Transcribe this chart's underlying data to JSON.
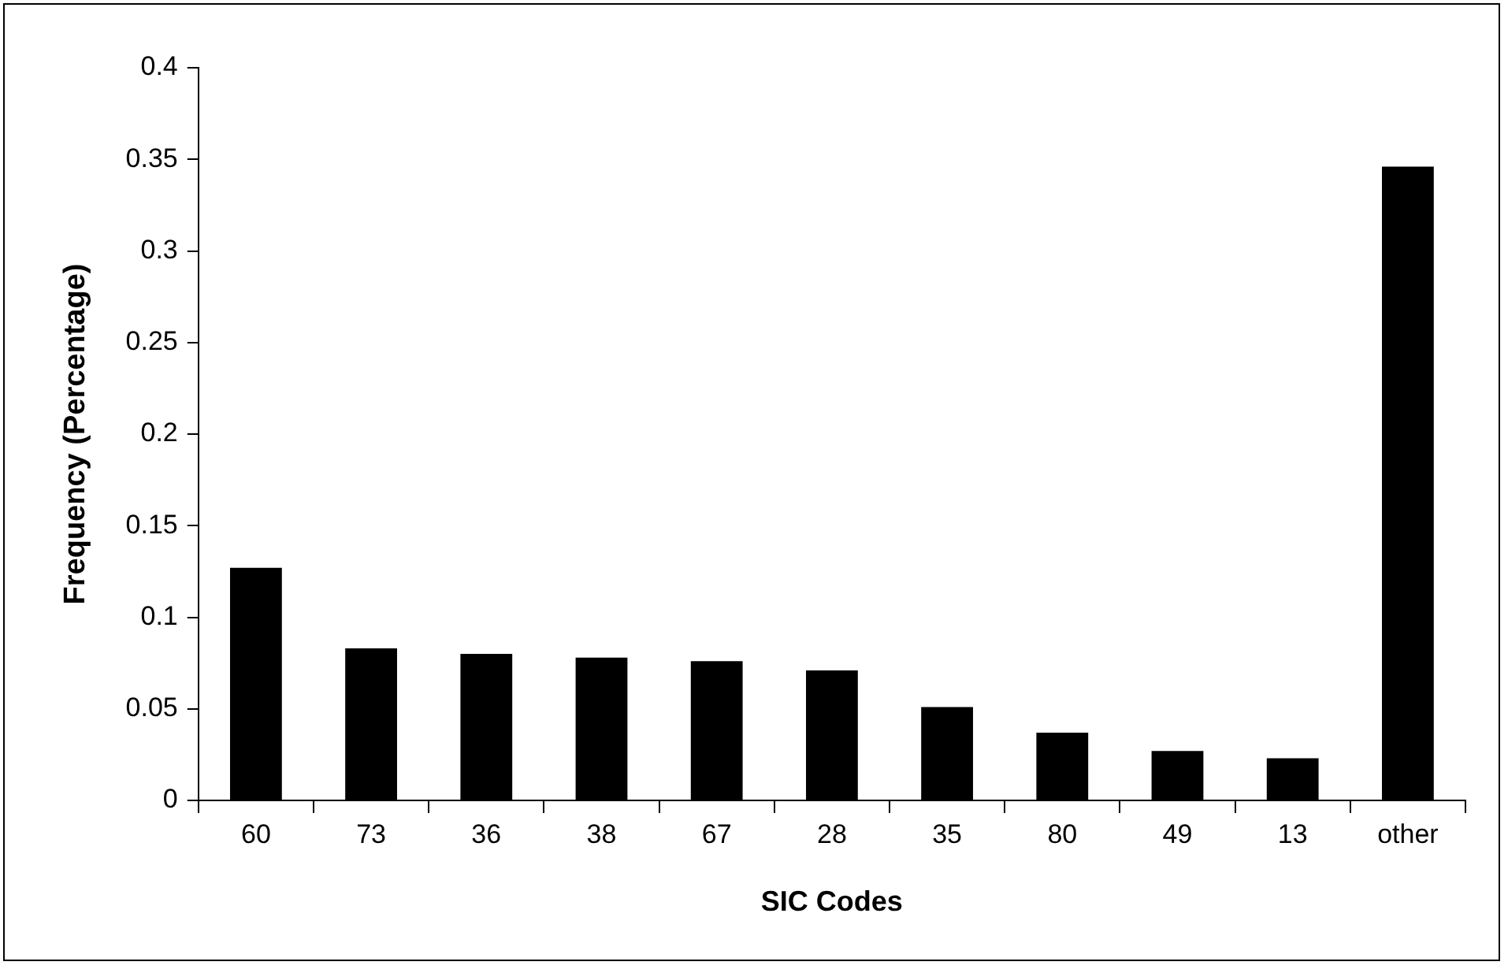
{
  "chart_data": {
    "type": "bar",
    "xlabel": "SIC Codes",
    "ylabel": "Frequency (Percentage)",
    "categories": [
      "60",
      "73",
      "36",
      "38",
      "67",
      "28",
      "35",
      "80",
      "49",
      "13",
      "other"
    ],
    "values": [
      0.127,
      0.083,
      0.08,
      0.078,
      0.076,
      0.071,
      0.051,
      0.037,
      0.027,
      0.023,
      0.346
    ],
    "color": "#000000",
    "ylim": [
      0,
      0.4
    ],
    "yticks": [
      0,
      0.05,
      0.1,
      0.15,
      0.2,
      0.25,
      0.3,
      0.35,
      0.4
    ],
    "grid": false,
    "legend": false
  }
}
